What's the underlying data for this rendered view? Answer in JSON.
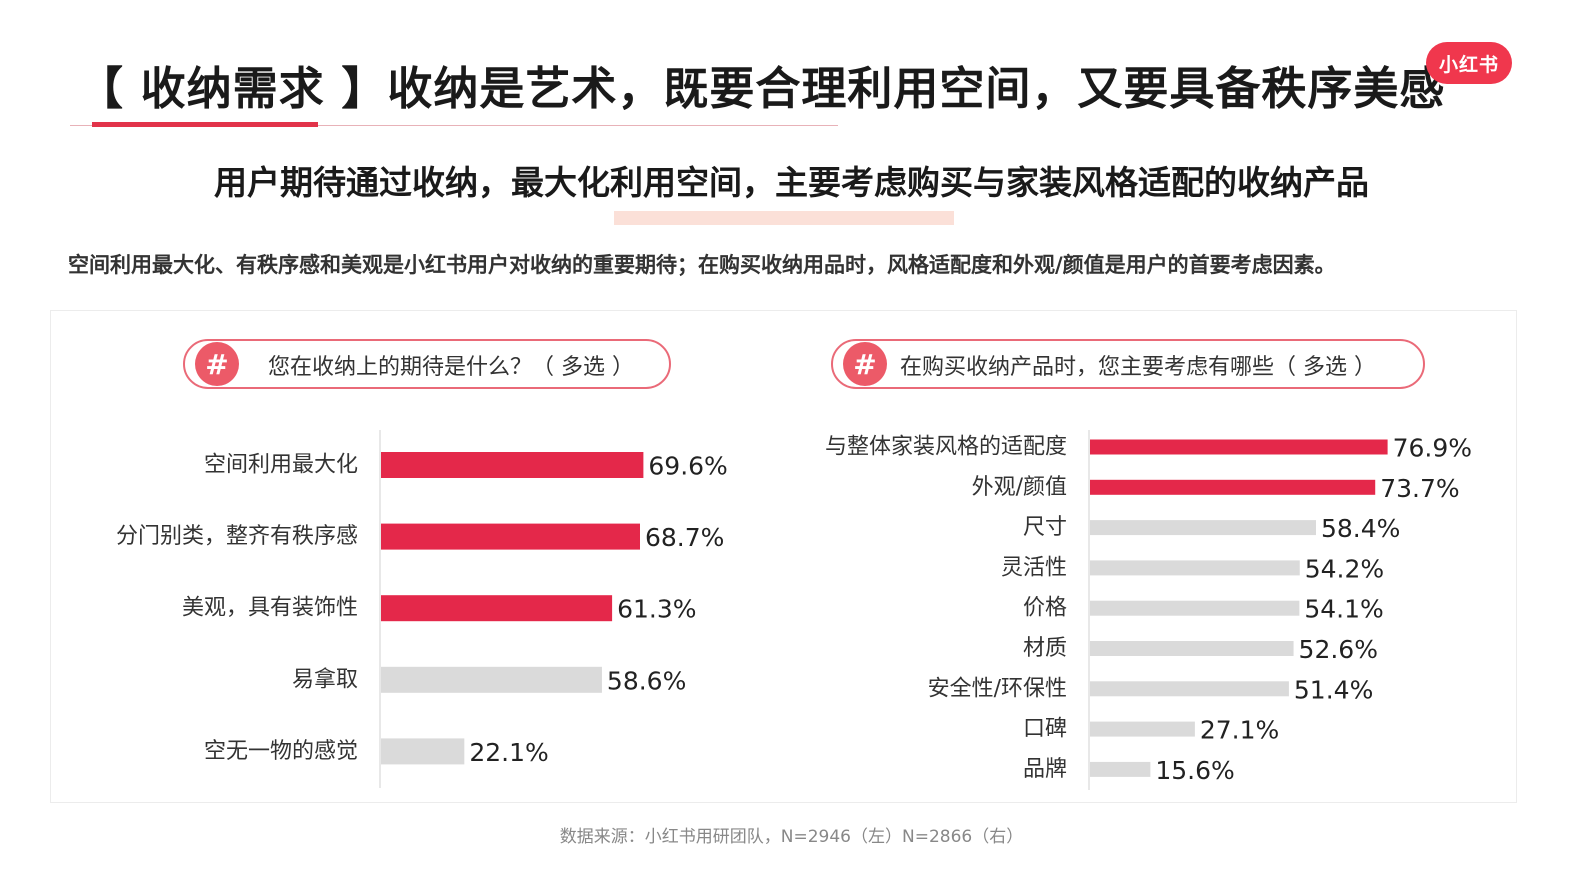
{
  "header": {
    "title": "【 收纳需求 】收纳是艺术，既要合理利用空间，又要具备秩序美感",
    "logo": "小红书",
    "subtitle": "用户期待通过收纳，最大化利用空间，主要考虑购买与家装风格适配的收纳产品",
    "summary": "空间利用最大化、有秩序感和美观是小红书用户对收纳的重要期待；在购买收纳用品时，风格适配度和外观/颜值是用户的首要考虑因素。"
  },
  "questions": {
    "left": "您在收纳上的期待是什么？（ 多选 ）",
    "right": "在购买收纳产品时，您主要考虑有哪些（ 多选 ）",
    "hash": "#"
  },
  "colors": {
    "highlight": "#e4284a",
    "muted": "#dadada",
    "accent": "#ea6a78"
  },
  "chart_data": [
    {
      "type": "bar",
      "orientation": "horizontal",
      "categories": [
        "空间利用最大化",
        "分门别类，整齐有秩序感",
        "美观，具有装饰性",
        "易拿取",
        "空无一物的感觉"
      ],
      "values": [
        69.6,
        68.7,
        61.3,
        58.6,
        22.1
      ],
      "labels": [
        "69.6%",
        "68.7%",
        "61.3%",
        "58.6%",
        "22.1%"
      ],
      "highlighted": [
        true,
        true,
        true,
        false,
        false
      ],
      "unit": "%"
    },
    {
      "type": "bar",
      "orientation": "horizontal",
      "categories": [
        "与整体家装风格的适配度",
        "外观/颜值",
        "尺寸",
        "灵活性",
        "价格",
        "材质",
        "安全性/环保性",
        "口碑",
        "品牌"
      ],
      "values": [
        76.9,
        73.7,
        58.4,
        54.2,
        54.1,
        52.6,
        51.4,
        27.1,
        15.6
      ],
      "labels": [
        "76.9%",
        "73.7%",
        "58.4%",
        "54.2%",
        "54.1%",
        "52.6%",
        "51.4%",
        "27.1%",
        "15.6%"
      ],
      "highlighted": [
        true,
        true,
        false,
        false,
        false,
        false,
        false,
        false,
        false
      ],
      "unit": "%"
    }
  ],
  "source": "数据来源：小红书用研团队，N=2946（左）N=2866（右）"
}
